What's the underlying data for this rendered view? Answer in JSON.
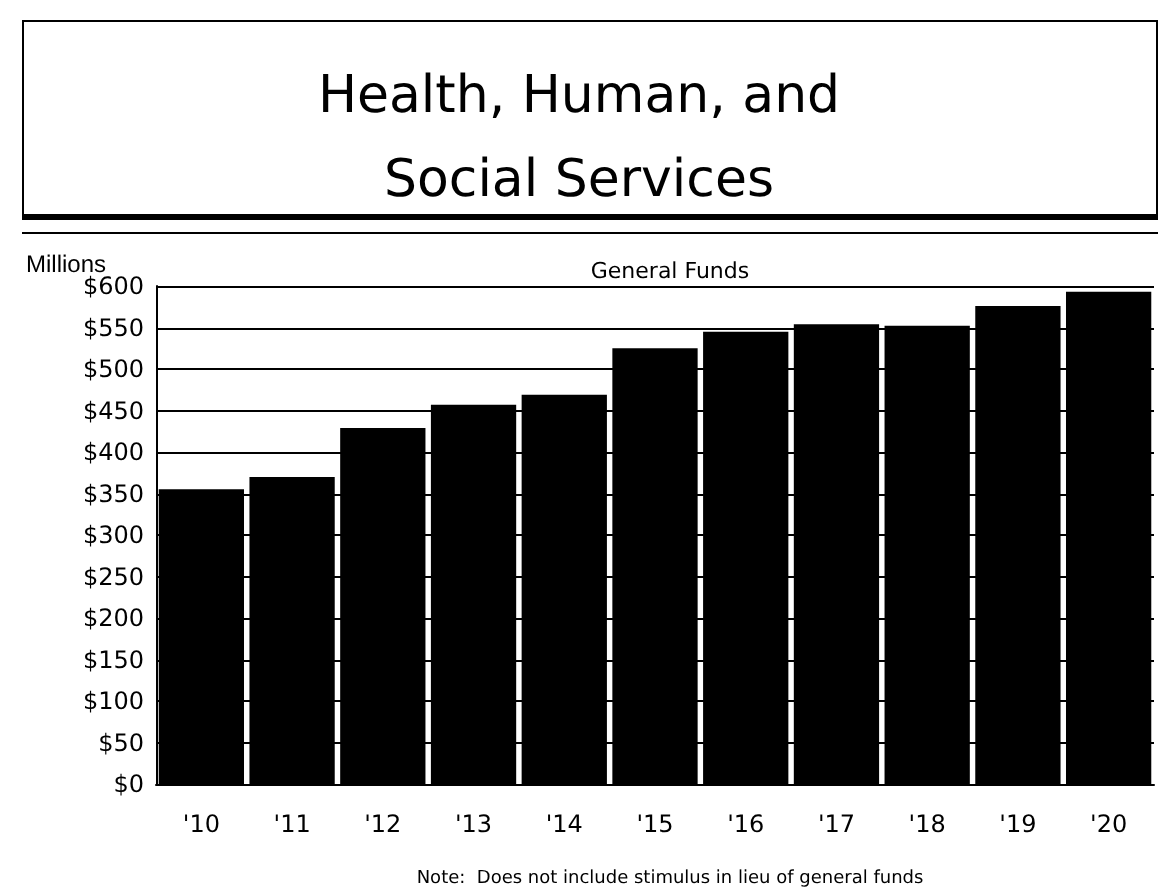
{
  "chart_data": {
    "type": "bar",
    "title": "Health, Human, and\nSocial Services",
    "subtitle": "General Funds",
    "ylabel": "Millions",
    "annotations": [
      "Note:  Does not include stimulus in lieu of general funds"
    ],
    "categories": [
      "'10",
      "'11",
      "'12",
      "'13",
      "'14",
      "'15",
      "'16",
      "'17",
      "'18",
      "'19",
      "'20"
    ],
    "values": [
      355,
      370,
      429,
      457,
      469,
      525,
      545,
      554,
      552,
      576,
      593
    ],
    "color": "#000000",
    "ylim": [
      0,
      600
    ],
    "yticks": [
      {
        "value": 0,
        "label": "$0"
      },
      {
        "value": 50,
        "label": "$50"
      },
      {
        "value": 100,
        "label": "$100"
      },
      {
        "value": 150,
        "label": "$150"
      },
      {
        "value": 200,
        "label": "$200"
      },
      {
        "value": 250,
        "label": "$250"
      },
      {
        "value": 300,
        "label": "$300"
      },
      {
        "value": 350,
        "label": "$350"
      },
      {
        "value": 400,
        "label": "$400"
      },
      {
        "value": 450,
        "label": "$450"
      },
      {
        "value": 500,
        "label": "$500"
      },
      {
        "value": 550,
        "label": "$550"
      },
      {
        "value": 600,
        "label": "$600"
      }
    ],
    "grid": "y"
  }
}
